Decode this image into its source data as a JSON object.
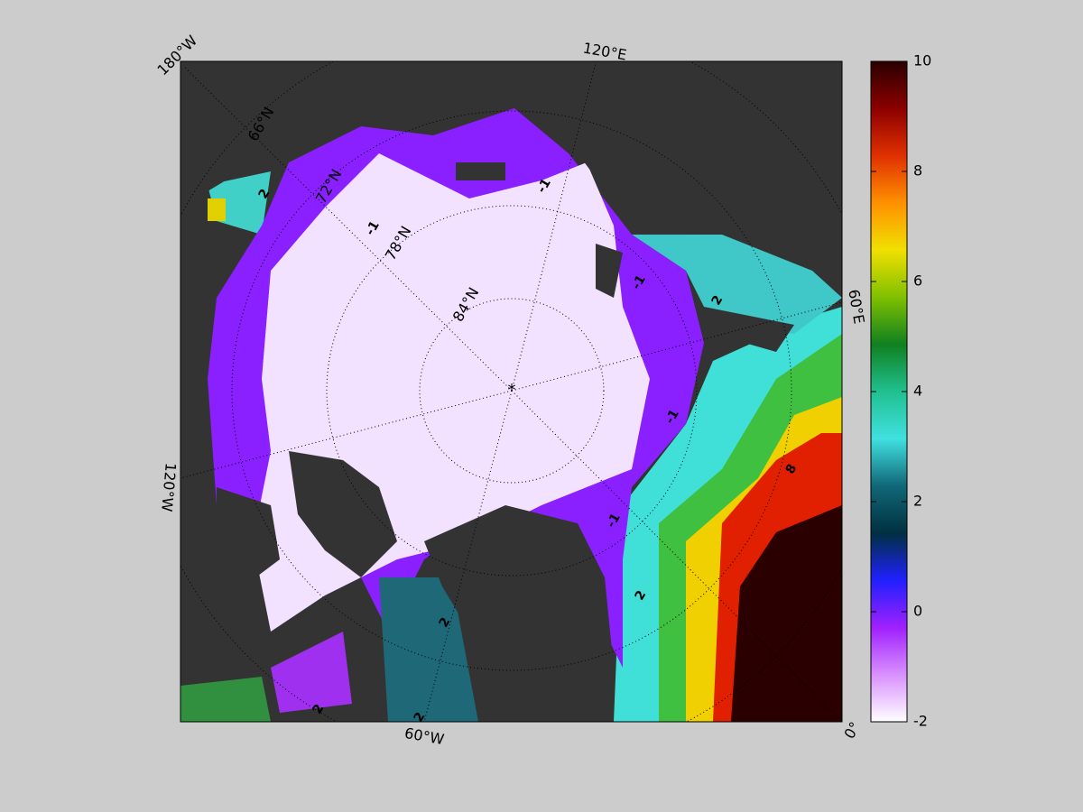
{
  "map": {
    "lon_labels": [
      "180°W",
      "120°E",
      "60°E",
      "0°",
      "60°W",
      "120°W"
    ],
    "lat_labels": [
      "66°N",
      "72°N",
      "78°N",
      "84°N"
    ],
    "contour_labels": [
      2,
      -1,
      -1,
      -1,
      2,
      -1,
      -1,
      2,
      2,
      2,
      2,
      8
    ],
    "colorbar": {
      "lim": [
        -2,
        10
      ],
      "ticks": [
        -2,
        0,
        2,
        4,
        6,
        8,
        10
      ],
      "colors": [
        "#ffffff",
        "#d890ff",
        "#a020ff",
        "#2020ff",
        "#003040",
        "#106878",
        "#40e0e0",
        "#20c090",
        "#108020",
        "#80c000",
        "#f0e000",
        "#ff9000",
        "#e03000",
        "#8b0000",
        "#2a0000"
      ]
    }
  }
}
